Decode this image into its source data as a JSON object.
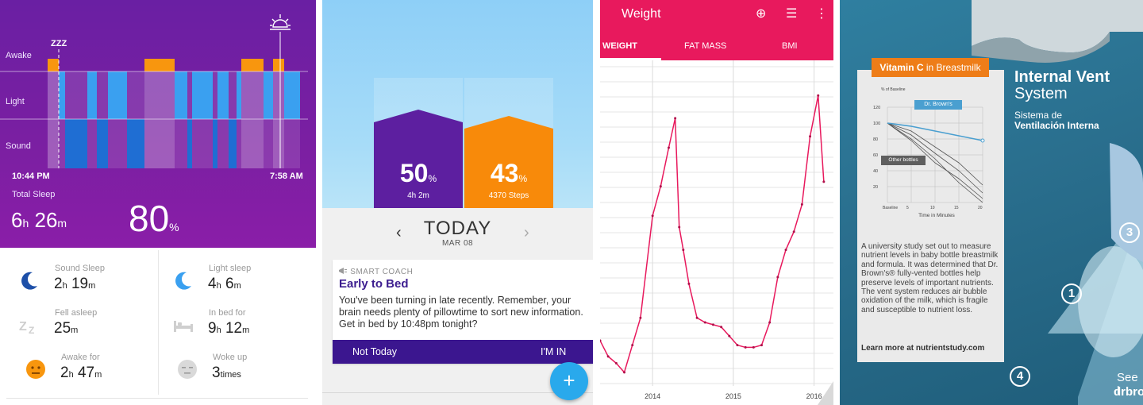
{
  "sleep": {
    "labels": {
      "awake": "Awake",
      "light": "Light",
      "sound": "Sound"
    },
    "zzz": "ZZZ",
    "start_time": "10:44 PM",
    "end_time": "7:58 AM",
    "total_label": "Total Sleep",
    "total_h": "6",
    "total_h_unit": "h",
    "total_m": "26",
    "total_m_unit": "m",
    "quality": "80",
    "quality_unit": "%",
    "stats": {
      "sound_sleep": {
        "label": "Sound Sleep",
        "h": "2",
        "h_unit": "h",
        "m": "19",
        "m_unit": "m"
      },
      "light_sleep": {
        "label": "Light sleep",
        "h": "4",
        "h_unit": "h",
        "m": "6",
        "m_unit": "m"
      },
      "fell_asleep": {
        "label": "Fell asleep",
        "m": "25",
        "m_unit": "m"
      },
      "in_bed": {
        "label": "In bed for",
        "h": "9",
        "h_unit": "h",
        "m": "12",
        "m_unit": "m"
      },
      "awake_for": {
        "label": "Awake for",
        "h": "2",
        "h_unit": "h",
        "m": "47",
        "m_unit": "m"
      },
      "woke_up": {
        "label": "Woke up",
        "count": "3",
        "unit": "times"
      }
    },
    "colors": {
      "bg": "#7b1fa2",
      "awake": "#f8960e",
      "light": "#3aa0f0",
      "sound": "#1f6ed3"
    }
  },
  "coach": {
    "left_pct": "50",
    "left_unit": "%",
    "left_sub": "4h 2m",
    "right_pct": "43",
    "right_unit": "%",
    "right_sub": "4370 Steps",
    "left_fraction": 0.5,
    "right_fraction": 0.43,
    "prev_arrow": "‹",
    "next_arrow": "›",
    "today": "TODAY",
    "date": "MAR 08",
    "card_kicker": "SMART COACH",
    "card_title": "Early to Bed",
    "card_body": "You've been turning in late recently. Remember, your brain needs plenty of pillowtime to sort new information. Get in bed by 10:48pm tonight?",
    "btn_no": "Not Today",
    "btn_yes": "I'M IN",
    "fab": "+",
    "colors": {
      "sleep": "#5d1fa0",
      "steps": "#f88a0a",
      "action_bar": "#3b168f",
      "fab": "#29a9ec"
    }
  },
  "weight": {
    "title": "Weight",
    "icons": [
      "add-circle-icon",
      "list-icon",
      "more-vert-icon"
    ],
    "icon_glyphs": [
      "⊕",
      "☰",
      "⋮"
    ],
    "tabs": [
      "WEIGHT",
      "FAT MASS",
      "BMI"
    ],
    "active_tab": "WEIGHT",
    "accent": "#e8195d",
    "chart_data": {
      "type": "line",
      "title": "",
      "xlabel": "",
      "ylabel": "",
      "x_ticks": [
        "2014",
        "2015",
        "2016"
      ],
      "x": [
        2013.35,
        2013.45,
        2013.55,
        2013.65,
        2013.75,
        2013.85,
        2014.0,
        2014.1,
        2014.2,
        2014.28,
        2014.33,
        2014.38,
        2014.45,
        2014.55,
        2014.65,
        2014.75,
        2014.85,
        2014.95,
        2015.05,
        2015.15,
        2015.25,
        2015.35,
        2015.45,
        2015.55,
        2015.65,
        2015.75,
        2015.85,
        2015.95,
        2016.05,
        2016.12
      ],
      "y": [
        20,
        13,
        10,
        6,
        18,
        30,
        75,
        88,
        105,
        118,
        70,
        60,
        45,
        30,
        28,
        27,
        26,
        22,
        18,
        17,
        17,
        18,
        28,
        48,
        60,
        68,
        80,
        110,
        128,
        90
      ],
      "ylim": [
        0,
        140
      ],
      "grid": true,
      "series": [
        {
          "values": [
            20,
            13,
            10,
            6,
            18,
            30,
            75,
            88,
            105,
            118,
            70,
            60,
            45,
            30,
            28,
            27,
            26,
            22,
            18,
            17,
            17,
            18,
            28,
            48,
            60,
            68,
            80,
            110,
            128,
            90
          ]
        }
      ]
    }
  },
  "product": {
    "badge_strong": "Vitamin C",
    "badge_rest": " in Breastmilk",
    "graph_title": "% of Baseline",
    "graph_yticks": [
      "120",
      "100",
      "80",
      "60",
      "40",
      "20"
    ],
    "graph_xticks": [
      "Baseline",
      "5",
      "10",
      "15",
      "20"
    ],
    "graph_xlabel": "Time in Minutes",
    "brown_label": "Dr. Brown's",
    "other_label": "Other bottles",
    "paragraph": "A university study set out to measure nutrient levels in baby bottle breastmilk and formula. It was determined that Dr. Brown's® fully-vented bottles help preserve levels of important nutrients. The vent system reduces air bubble oxidation of the milk, which is fragile and susceptible to nutrient loss.",
    "learn_more": "Learn more at nutrientstudy.com",
    "heading1": "Internal Vent",
    "heading2": "System",
    "spanish1": "Sistema de",
    "spanish2": "Ventilación Interna",
    "numbers": [
      "1",
      "3",
      "4"
    ],
    "see": "See l",
    "brand": "drbro",
    "brown_series_fraction": [
      1.0,
      0.96,
      0.9,
      0.84,
      0.78
    ],
    "colors": {
      "badge": "#ee7d18",
      "brown_line": "#4a9fd0"
    }
  }
}
